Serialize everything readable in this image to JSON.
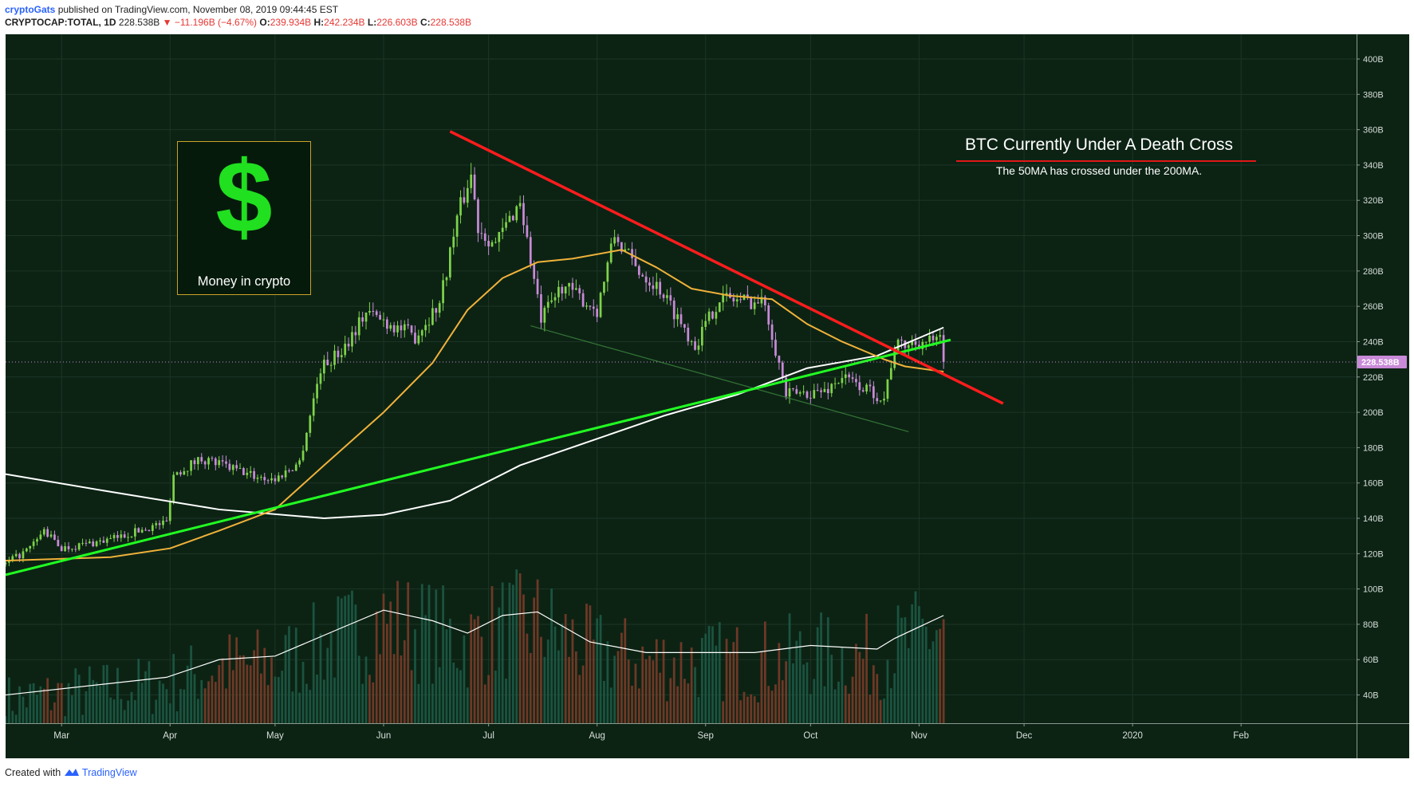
{
  "header": {
    "author": "cryptoGats",
    "published_text": "published on TradingView.com, November 08, 2019 09:44:45 EST",
    "symbol": "CRYPTOCAP:TOTAL, 1D",
    "last": "228.538B",
    "change": "▼ −11.196B (−4.67%)",
    "open_label": "O:",
    "open": "239.934B",
    "high_label": "H:",
    "high": "242.234B",
    "low_label": "L:",
    "low": "226.603B",
    "close_label": "C:",
    "close": "228.538B"
  },
  "footer": {
    "created_with": "Created with",
    "brand": "TradingView"
  },
  "logo_box": {
    "symbol": "$",
    "caption": "Money in crypto"
  },
  "annotation": {
    "title": "BTC Currently Under A Death Cross",
    "subtitle": "The 50MA has crossed under the 200MA."
  },
  "colors": {
    "background": "#0c2314",
    "grid": "#1c3526",
    "up": "#7fd34a",
    "down": "#c98ad8",
    "ma50": "#f0b23a",
    "ma200": "#ffffff",
    "resistance": "#ff1c1c",
    "support": "#22ff22",
    "price_tag": "#c98ad8",
    "volume_up": "#1d5a46",
    "volume_down": "#7a3b28"
  },
  "chart_data": {
    "type": "candlestick",
    "title": "CRYPTOCAP:TOTAL, 1D",
    "x_ticks": [
      "Mar",
      "Apr",
      "May",
      "Jun",
      "Jul",
      "Aug",
      "Sep",
      "Oct",
      "Nov",
      "Dec",
      "2020",
      "Feb"
    ],
    "y_ticks": [
      "400B",
      "380B",
      "360B",
      "340B",
      "320B",
      "300B",
      "280B",
      "260B",
      "240B",
      "220B",
      "200B",
      "180B",
      "160B",
      "140B",
      "120B",
      "100B",
      "80B",
      "60B",
      "40B"
    ],
    "y_tick_values": [
      400,
      380,
      360,
      340,
      320,
      300,
      280,
      260,
      240,
      220,
      200,
      180,
      160,
      140,
      120,
      100,
      80,
      60,
      40
    ],
    "ylim": [
      24,
      414
    ],
    "x_range": {
      "start": "2019-02-13",
      "days": 386
    },
    "last_price_label": "228.538B",
    "last_price": 228.5,
    "price_path": [
      [
        "2019-02-13",
        114
      ],
      [
        "2019-02-20",
        123
      ],
      [
        "2019-02-24",
        133
      ],
      [
        "2019-03-01",
        123
      ],
      [
        "2019-03-15",
        128
      ],
      [
        "2019-03-31",
        138
      ],
      [
        "2019-04-02",
        165
      ],
      [
        "2019-04-10",
        174
      ],
      [
        "2019-04-25",
        164
      ],
      [
        "2019-05-01",
        162
      ],
      [
        "2019-05-08",
        172
      ],
      [
        "2019-05-14",
        225
      ],
      [
        "2019-05-20",
        235
      ],
      [
        "2019-05-27",
        257
      ],
      [
        "2019-06-03",
        250
      ],
      [
        "2019-06-10",
        243
      ],
      [
        "2019-06-17",
        262
      ],
      [
        "2019-06-22",
        310
      ],
      [
        "2019-06-26",
        335
      ],
      [
        "2019-06-28",
        305
      ],
      [
        "2019-07-03",
        295
      ],
      [
        "2019-07-10",
        320
      ],
      [
        "2019-07-16",
        252
      ],
      [
        "2019-07-22",
        272
      ],
      [
        "2019-08-01",
        258
      ],
      [
        "2019-08-06",
        300
      ],
      [
        "2019-08-12",
        282
      ],
      [
        "2019-08-19",
        270
      ],
      [
        "2019-08-29",
        238
      ],
      [
        "2019-09-05",
        265
      ],
      [
        "2019-09-18",
        262
      ],
      [
        "2019-09-24",
        210
      ],
      [
        "2019-10-05",
        212
      ],
      [
        "2019-10-10",
        220
      ],
      [
        "2019-10-22",
        208
      ],
      [
        "2019-10-25",
        237
      ],
      [
        "2019-11-01",
        240
      ],
      [
        "2019-11-07",
        240
      ],
      [
        "2019-11-08",
        228.5
      ]
    ],
    "ma50_path": [
      [
        "2019-02-13",
        116
      ],
      [
        "2019-03-15",
        118
      ],
      [
        "2019-04-01",
        123
      ],
      [
        "2019-04-15",
        133
      ],
      [
        "2019-05-01",
        145
      ],
      [
        "2019-05-15",
        170
      ],
      [
        "2019-06-01",
        200
      ],
      [
        "2019-06-15",
        228
      ],
      [
        "2019-06-25",
        258
      ],
      [
        "2019-07-05",
        276
      ],
      [
        "2019-07-15",
        285
      ],
      [
        "2019-07-25",
        287
      ],
      [
        "2019-08-08",
        292
      ],
      [
        "2019-08-18",
        282
      ],
      [
        "2019-08-28",
        270
      ],
      [
        "2019-09-08",
        266
      ],
      [
        "2019-09-20",
        264
      ],
      [
        "2019-09-30",
        250
      ],
      [
        "2019-10-10",
        240
      ],
      [
        "2019-10-22",
        230
      ],
      [
        "2019-10-28",
        226
      ],
      [
        "2019-11-08",
        223
      ]
    ],
    "ma200_path": [
      [
        "2019-02-13",
        165
      ],
      [
        "2019-03-15",
        155
      ],
      [
        "2019-04-15",
        145
      ],
      [
        "2019-05-15",
        140
      ],
      [
        "2019-06-01",
        142
      ],
      [
        "2019-06-20",
        150
      ],
      [
        "2019-07-10",
        170
      ],
      [
        "2019-08-01",
        185
      ],
      [
        "2019-08-20",
        198
      ],
      [
        "2019-09-10",
        210
      ],
      [
        "2019-09-30",
        225
      ],
      [
        "2019-10-20",
        232
      ],
      [
        "2019-11-08",
        248
      ]
    ],
    "resistance_line": [
      [
        "2019-06-20",
        359
      ],
      [
        "2019-11-25",
        205
      ]
    ],
    "support_line": [
      [
        "2019-02-13",
        108
      ],
      [
        "2019-11-10",
        241
      ]
    ],
    "channel_line": [
      [
        "2019-07-13",
        249
      ],
      [
        "2019-10-29",
        189
      ]
    ],
    "volume_path": [
      [
        "2019-02-13",
        40
      ],
      [
        "2019-03-31",
        50
      ],
      [
        "2019-04-15",
        60
      ],
      [
        "2019-05-01",
        62
      ],
      [
        "2019-05-20",
        78
      ],
      [
        "2019-06-01",
        88
      ],
      [
        "2019-06-15",
        82
      ],
      [
        "2019-06-25",
        75
      ],
      [
        "2019-07-05",
        85
      ],
      [
        "2019-07-15",
        87
      ],
      [
        "2019-07-30",
        70
      ],
      [
        "2019-08-15",
        64
      ],
      [
        "2019-09-15",
        64
      ],
      [
        "2019-10-01",
        68
      ],
      [
        "2019-10-20",
        66
      ],
      [
        "2019-10-25",
        72
      ],
      [
        "2019-11-08",
        85
      ]
    ]
  }
}
